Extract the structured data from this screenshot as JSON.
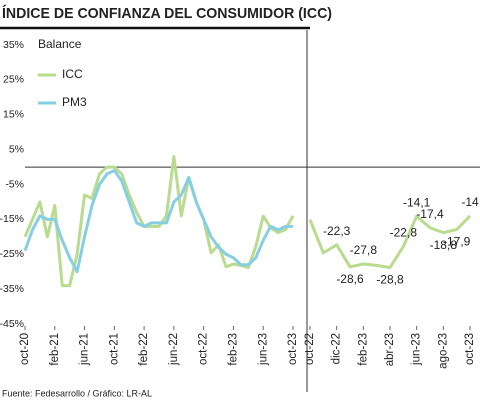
{
  "chart_data": [
    {
      "type": "line",
      "title": "ÍNDICE DE CONFIANZA DEL CONSUMIDOR (ICC)",
      "y_label": "Balance",
      "source": "Fuente: Fedesarrollo / Gráfico: LR-AL",
      "categories": [
        "oct-20",
        null,
        null,
        null,
        "feb-21",
        null,
        null,
        null,
        "jun-21",
        null,
        null,
        null,
        "oct-21",
        null,
        null,
        null,
        "feb-22",
        null,
        null,
        null,
        "jun-22",
        null,
        null,
        null,
        "oct-22",
        null,
        null,
        null,
        "feb-23",
        null,
        null,
        null,
        "jun-23",
        null,
        null,
        null,
        "oct-23"
      ],
      "series": [
        {
          "name": "ICC",
          "color": "#b9db8e",
          "values": [
            -20,
            -15,
            -10,
            -20,
            -11,
            -34,
            -34,
            -25,
            -8,
            -9,
            -2,
            0,
            0,
            -2,
            -8,
            -13,
            -17,
            -17,
            -17,
            -14,
            3,
            -14,
            -3,
            -10,
            -15.1,
            -24.6,
            -22.3,
            -28.6,
            -27.8,
            -28.2,
            -28.8,
            -22.8,
            -14.1,
            -17.4,
            -18.8,
            -17.9,
            -14
          ]
        },
        {
          "name": "PM3",
          "color": "#86cfe3",
          "values": [
            -24,
            -18,
            -14,
            -15,
            -15,
            -21,
            -26,
            -30,
            -20,
            -11,
            -5,
            -2,
            -1,
            -4,
            -10,
            -16,
            -17,
            -16,
            -16,
            -16,
            -10,
            -8,
            -3,
            -10,
            -15,
            -20,
            -23,
            -25,
            -26,
            -28,
            -28,
            -26,
            -21,
            -17,
            -18,
            -17,
            -17
          ]
        }
      ],
      "ylim": [
        -45,
        35
      ],
      "yticks": [
        {
          "value": 35,
          "label": "35%"
        },
        {
          "value": 25,
          "label": "25%"
        },
        {
          "value": 15,
          "label": "15%"
        },
        {
          "value": 5,
          "label": "5%"
        },
        {
          "value": -5,
          "label": "-5%"
        },
        {
          "value": -15,
          "label": "-15%"
        },
        {
          "value": -25,
          "label": "-25%"
        },
        {
          "value": -35,
          "label": "-35%"
        },
        {
          "value": -45,
          "label": "-45%"
        }
      ],
      "legend": "upper left"
    },
    {
      "type": "line",
      "categories": [
        "oct-22",
        null,
        "dic-22",
        null,
        "feb-23",
        null,
        "abr-23",
        null,
        "jun-23",
        null,
        "ago-23",
        null,
        "oct-23"
      ],
      "series": [
        {
          "name": "ICC",
          "color": "#b9db8e",
          "values": [
            -15.1,
            -24.6,
            -22.3,
            -28.6,
            -27.8,
            -28.2,
            -28.8,
            -22.8,
            -14.1,
            -17.4,
            -18.8,
            -17.9,
            -14
          ],
          "value_labels": [
            null,
            null,
            "-22,3",
            "-28,6",
            "-27,8",
            null,
            "-28,8",
            "-22,8",
            "-14,1",
            "-17,4",
            "-18,8",
            "-17,9",
            "-14"
          ]
        }
      ],
      "ylim": [
        -45,
        35
      ]
    }
  ]
}
